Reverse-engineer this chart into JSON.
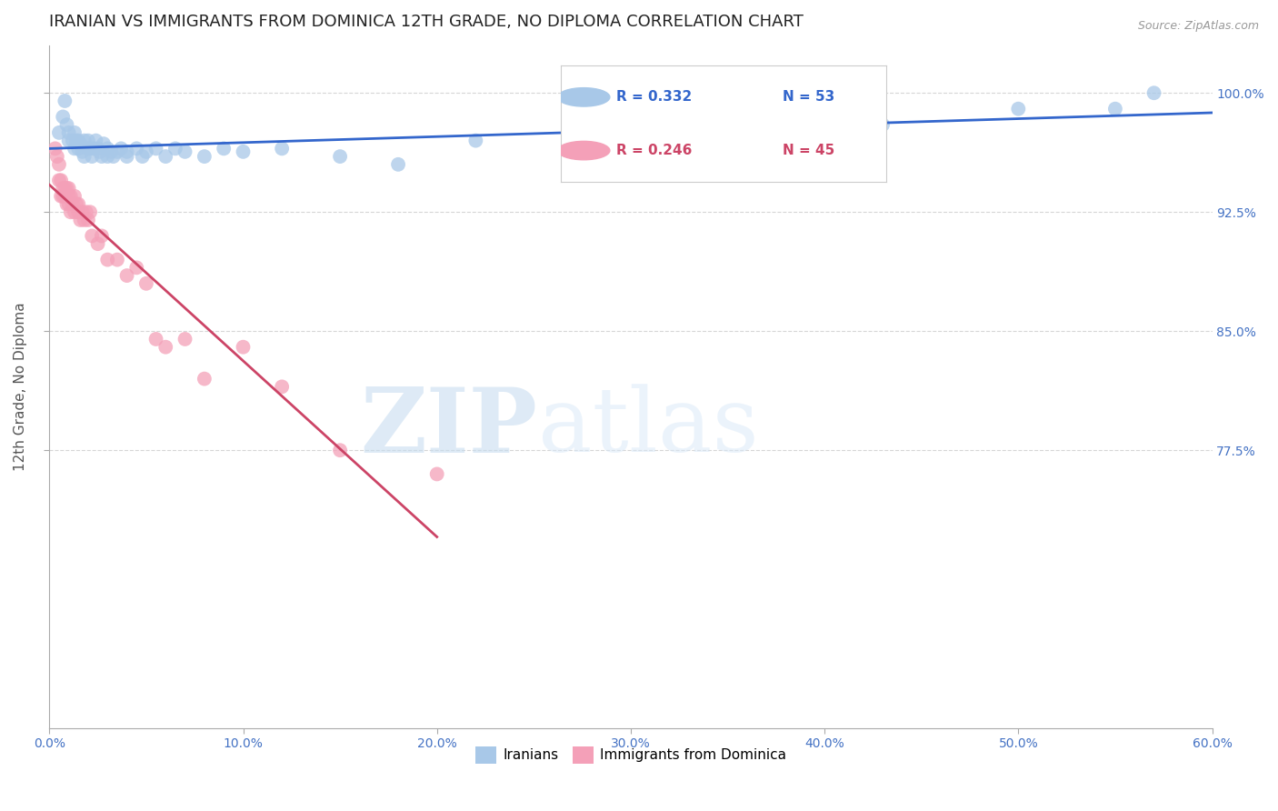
{
  "title": "IRANIAN VS IMMIGRANTS FROM DOMINICA 12TH GRADE, NO DIPLOMA CORRELATION CHART",
  "source": "Source: ZipAtlas.com",
  "ylabel": "12th Grade, No Diploma",
  "xmin": 0.0,
  "xmax": 0.6,
  "ymin": 0.6,
  "ymax": 1.03,
  "yticks": [
    0.775,
    0.85,
    0.925,
    1.0
  ],
  "ytick_labels": [
    "77.5%",
    "85.0%",
    "92.5%",
    "100.0%"
  ],
  "xticks": [
    0.0,
    0.1,
    0.2,
    0.3,
    0.4,
    0.5,
    0.6
  ],
  "xtick_labels": [
    "0.0%",
    "10.0%",
    "20.0%",
    "30.0%",
    "40.0%",
    "50.0%",
    "60.0%"
  ],
  "iranians_color": "#a8c8e8",
  "dominica_color": "#f4a0b8",
  "trendline_iranian_color": "#3366cc",
  "trendline_dominica_color": "#cc4466",
  "legend_R_iranian": "R = 0.332",
  "legend_N_iranian": "N = 53",
  "legend_R_dominica": "R = 0.246",
  "legend_N_dominica": "N = 45",
  "background_color": "#ffffff",
  "grid_color": "#cccccc",
  "axis_color": "#4472c4",
  "watermark_zip": "ZIP",
  "watermark_atlas": "atlas",
  "iranians_x": [
    0.005,
    0.007,
    0.008,
    0.009,
    0.01,
    0.01,
    0.012,
    0.013,
    0.013,
    0.014,
    0.015,
    0.015,
    0.016,
    0.017,
    0.018,
    0.018,
    0.02,
    0.02,
    0.021,
    0.022,
    0.023,
    0.024,
    0.025,
    0.026,
    0.027,
    0.028,
    0.03,
    0.03,
    0.032,
    0.033,
    0.035,
    0.037,
    0.04,
    0.04,
    0.045,
    0.048,
    0.05,
    0.055,
    0.06,
    0.065,
    0.07,
    0.08,
    0.09,
    0.1,
    0.12,
    0.15,
    0.18,
    0.22,
    0.3,
    0.43,
    0.5,
    0.55,
    0.57
  ],
  "iranians_y": [
    0.975,
    0.985,
    0.995,
    0.98,
    0.97,
    0.975,
    0.97,
    0.965,
    0.975,
    0.97,
    0.965,
    0.97,
    0.968,
    0.963,
    0.96,
    0.97,
    0.965,
    0.97,
    0.965,
    0.96,
    0.965,
    0.97,
    0.965,
    0.963,
    0.96,
    0.968,
    0.96,
    0.965,
    0.963,
    0.96,
    0.963,
    0.965,
    0.96,
    0.963,
    0.965,
    0.96,
    0.963,
    0.965,
    0.96,
    0.965,
    0.963,
    0.96,
    0.965,
    0.963,
    0.965,
    0.96,
    0.955,
    0.97,
    0.965,
    0.98,
    0.99,
    0.99,
    1.0
  ],
  "dominica_x": [
    0.003,
    0.004,
    0.005,
    0.005,
    0.006,
    0.006,
    0.007,
    0.007,
    0.008,
    0.008,
    0.009,
    0.009,
    0.01,
    0.01,
    0.01,
    0.011,
    0.011,
    0.012,
    0.013,
    0.013,
    0.014,
    0.015,
    0.015,
    0.016,
    0.017,
    0.018,
    0.019,
    0.02,
    0.021,
    0.022,
    0.025,
    0.027,
    0.03,
    0.035,
    0.04,
    0.045,
    0.05,
    0.055,
    0.06,
    0.07,
    0.08,
    0.1,
    0.12,
    0.15,
    0.2
  ],
  "dominica_y": [
    0.965,
    0.96,
    0.955,
    0.945,
    0.935,
    0.945,
    0.935,
    0.94,
    0.935,
    0.94,
    0.93,
    0.94,
    0.93,
    0.935,
    0.94,
    0.925,
    0.935,
    0.93,
    0.925,
    0.935,
    0.93,
    0.925,
    0.93,
    0.92,
    0.925,
    0.92,
    0.925,
    0.92,
    0.925,
    0.91,
    0.905,
    0.91,
    0.895,
    0.895,
    0.885,
    0.89,
    0.88,
    0.845,
    0.84,
    0.845,
    0.82,
    0.84,
    0.815,
    0.775,
    0.76
  ]
}
